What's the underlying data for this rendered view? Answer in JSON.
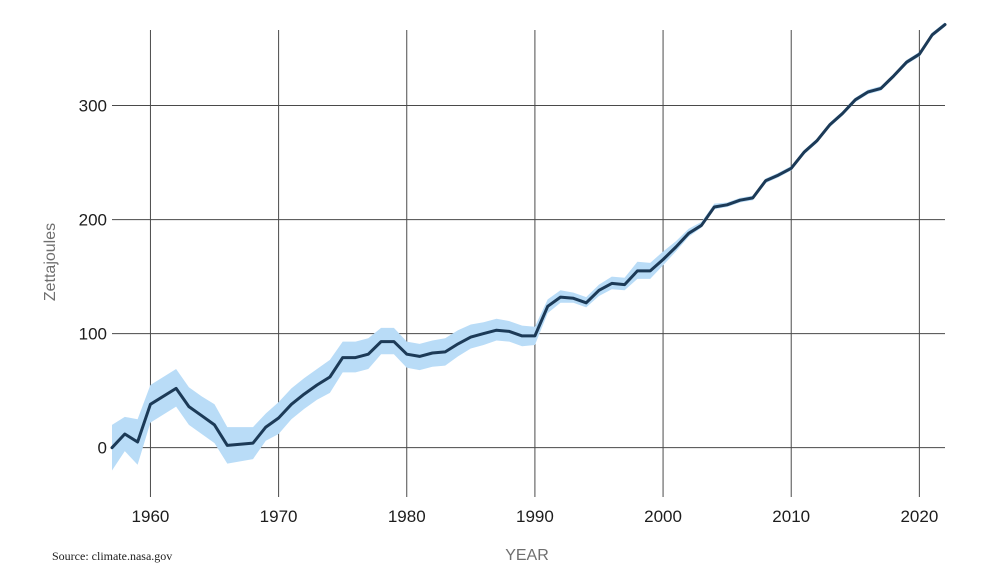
{
  "chart_data": {
    "type": "line",
    "xlabel": "YEAR",
    "ylabel": "Zettajoules",
    "source": "Source: climate.nasa.gov",
    "xlim": [
      1957,
      2022
    ],
    "ylim": [
      -45,
      375
    ],
    "xticks": [
      1960,
      1970,
      1980,
      1990,
      2000,
      2010,
      2020
    ],
    "yticks": [
      0,
      100,
      200,
      300
    ],
    "grid": true,
    "colors": {
      "line": "#1c3a57",
      "band": "#b9dcf7",
      "grid": "#4a4a4a",
      "axis_text": "#1d1d1d",
      "axis_title": "#6f6f6f"
    },
    "series": [
      {
        "x": [
          1957,
          1958,
          1959,
          1960,
          1962,
          1963,
          1964,
          1965,
          1966,
          1968,
          1969,
          1970,
          1971,
          1972,
          1973,
          1974,
          1975,
          1976,
          1977,
          1978,
          1979,
          1980,
          1981,
          1982,
          1983,
          1984,
          1985,
          1986,
          1987,
          1988,
          1989,
          1990,
          1991,
          1992,
          1993,
          1994,
          1995,
          1996,
          1997,
          1998,
          1999,
          2000,
          2001,
          2002,
          2003,
          2004,
          2005,
          2006,
          2007,
          2008,
          2009,
          2010,
          2011,
          2012,
          2013,
          2014,
          2015,
          2016,
          2017,
          2018,
          2019,
          2020,
          2021,
          2022
        ],
        "values": [
          0,
          12,
          5,
          38,
          52,
          36,
          28,
          20,
          2,
          4,
          18,
          26,
          38,
          47,
          55,
          62,
          79,
          79,
          82,
          93,
          93,
          82,
          80,
          83,
          84,
          91,
          97,
          100,
          103,
          102,
          98,
          98,
          124,
          132,
          131,
          127,
          138,
          144,
          143,
          155,
          155,
          165,
          176,
          188,
          195,
          211,
          213,
          217,
          219,
          234,
          239,
          245,
          259,
          269,
          283,
          293,
          305,
          312,
          315,
          326,
          338,
          345,
          362,
          371
        ],
        "lower": [
          -20,
          -3,
          -15,
          22,
          36,
          20,
          12,
          4,
          -14,
          -10,
          6,
          12,
          25,
          34,
          42,
          48,
          66,
          66,
          69,
          82,
          82,
          70,
          68,
          71,
          72,
          80,
          87,
          90,
          94,
          93,
          89,
          90,
          118,
          127,
          127,
          123,
          133,
          139,
          138,
          148,
          148,
          160,
          172,
          185,
          193,
          209,
          211,
          215,
          217,
          232,
          237,
          243,
          257,
          267,
          281,
          291,
          303,
          310,
          313,
          324,
          336,
          343,
          360,
          369
        ],
        "upper": [
          20,
          27,
          25,
          55,
          69,
          53,
          45,
          38,
          18,
          18,
          30,
          40,
          52,
          61,
          69,
          77,
          93,
          93,
          96,
          105,
          105,
          93,
          91,
          94,
          96,
          103,
          108,
          110,
          113,
          111,
          107,
          106,
          130,
          138,
          136,
          132,
          143,
          150,
          149,
          163,
          162,
          172,
          181,
          192,
          198,
          214,
          215,
          219,
          221,
          236,
          241,
          247,
          261,
          271,
          285,
          295,
          307,
          314,
          317,
          328,
          340,
          347,
          364,
          373
        ]
      }
    ]
  }
}
